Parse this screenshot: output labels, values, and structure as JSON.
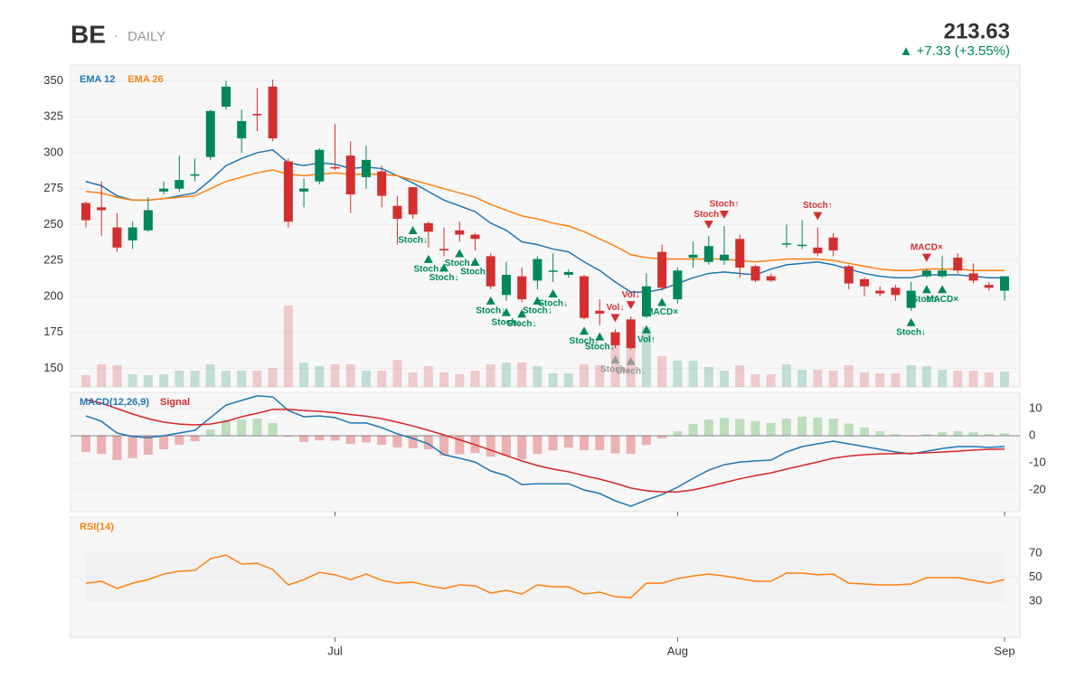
{
  "header": {
    "symbol": "BE",
    "separator": "·",
    "interval": "DAILY",
    "price": 213.63,
    "change": "▲ +7.33  (+3.55%)"
  },
  "chart_data": [
    {
      "type": "candlestick",
      "categories": [
        null,
        null,
        null,
        null,
        null,
        null,
        null,
        null,
        null,
        null,
        null,
        null,
        null,
        null,
        null,
        null,
        "Jul",
        null,
        null,
        null,
        null,
        null,
        null,
        null,
        null,
        null,
        null,
        null,
        null,
        null,
        null,
        null,
        null,
        null,
        null,
        null,
        null,
        null,
        "Aug",
        null,
        null,
        null,
        null,
        null,
        null,
        null,
        null,
        null,
        null,
        null,
        null,
        null,
        null,
        null,
        null,
        null,
        null,
        null,
        null,
        "Sep"
      ],
      "open": [
        265,
        262,
        248,
        239,
        246,
        273,
        275,
        284,
        297,
        332,
        310,
        327,
        346,
        294,
        273,
        280,
        290,
        298,
        283,
        287,
        263,
        276,
        251,
        233,
        246,
        243,
        228,
        201,
        214,
        211,
        218,
        215,
        214,
        190,
        175,
        184,
        186,
        231,
        198,
        227,
        224,
        225,
        240,
        221,
        214,
        237,
        236,
        234,
        241,
        221,
        212,
        204,
        206,
        192,
        214,
        214,
        227,
        216,
        208,
        204
      ],
      "high": [
        266,
        280,
        258,
        252,
        269,
        280,
        298,
        296,
        330,
        350,
        330,
        345,
        351,
        296,
        282,
        303,
        320,
        308,
        305,
        291,
        270,
        276,
        252,
        248,
        252,
        244,
        230,
        224,
        220,
        228,
        230,
        219,
        215,
        198,
        177,
        186,
        216,
        236,
        220,
        238,
        242,
        249,
        243,
        222,
        216,
        250,
        253,
        248,
        244,
        222,
        213,
        207,
        208,
        210,
        219,
        228,
        230,
        223,
        210,
        214
      ],
      "low": [
        248,
        242,
        231,
        233,
        245,
        271,
        273,
        280,
        295,
        330,
        300,
        315,
        308,
        248,
        262,
        278,
        288,
        258,
        275,
        262,
        236,
        254,
        234,
        228,
        238,
        232,
        205,
        197,
        196,
        205,
        210,
        213,
        184,
        180,
        164,
        163,
        185,
        204,
        195,
        220,
        222,
        222,
        213,
        210,
        210,
        234,
        233,
        228,
        228,
        205,
        200,
        200,
        197,
        190,
        213,
        213,
        216,
        209,
        204,
        197
      ],
      "close": [
        253,
        260,
        234,
        248,
        260,
        275,
        281,
        285,
        329,
        346,
        322,
        326,
        310,
        252,
        275,
        302,
        289,
        271,
        295,
        270,
        254,
        257,
        245,
        232,
        243,
        240,
        207,
        215,
        198,
        226,
        218,
        217,
        185,
        188,
        166,
        164,
        207,
        206,
        218,
        229,
        235,
        229,
        220,
        211,
        211,
        237,
        236,
        230,
        232,
        209,
        207,
        202,
        201,
        204,
        218,
        218,
        218,
        211,
        206,
        214
      ],
      "volume": [
        13,
        25,
        24,
        14,
        13,
        14,
        18,
        18,
        25,
        18,
        18,
        18,
        21,
        90,
        27,
        23,
        25,
        25,
        18,
        18,
        30,
        16,
        23,
        16,
        14,
        18,
        25,
        27,
        27,
        23,
        15,
        15,
        25,
        24,
        48,
        58,
        66,
        34,
        29,
        29,
        22,
        18,
        24,
        14,
        14,
        25,
        19,
        19,
        18,
        24,
        16,
        15,
        15,
        24,
        23,
        19,
        18,
        18,
        16,
        17
      ],
      "up_color": "#00875a",
      "down_color": "#d32f2f",
      "series": [
        {
          "name": "EMA 12",
          "color": "#1f77b4",
          "values": [
            280,
            277,
            270,
            267,
            267,
            268,
            270,
            272,
            281,
            291,
            296,
            300,
            302,
            293,
            291,
            293,
            292,
            289,
            290,
            289,
            284,
            279,
            273,
            267,
            263,
            259,
            251,
            246,
            238,
            236,
            233,
            231,
            224,
            218,
            210,
            203,
            203,
            205,
            209,
            213,
            216,
            217,
            216,
            215,
            219,
            222,
            223,
            224,
            222,
            219,
            216,
            214,
            213,
            213,
            215,
            215,
            215,
            214,
            213,
            213
          ]
        },
        {
          "name": "EMA 26",
          "color": "#ff7f0e",
          "values": [
            273,
            272,
            269,
            267,
            267,
            268,
            269,
            270,
            275,
            280,
            283,
            286,
            288,
            285,
            284,
            285,
            286,
            285,
            285,
            285,
            284,
            281,
            278,
            275,
            272,
            269,
            264,
            260,
            256,
            254,
            251,
            249,
            245,
            240,
            235,
            229,
            227,
            226,
            226,
            226,
            226,
            226,
            225,
            224,
            225,
            226,
            226,
            226,
            225,
            223,
            221,
            219,
            218,
            218,
            219,
            219,
            219,
            218,
            218,
            218
          ]
        }
      ],
      "ylim": [
        137,
        361
      ],
      "yticks": [
        150,
        175,
        200,
        225,
        250,
        275,
        300,
        325,
        350
      ],
      "grid": true,
      "annotations": [
        {
          "index": 21,
          "label": "Stoch↓",
          "side": "below",
          "color": "#00875a"
        },
        {
          "index": 22,
          "label": "Stoch↓",
          "side": "below",
          "color": "#00875a"
        },
        {
          "index": 23,
          "label": "Stoch↓",
          "side": "below",
          "color": "#00875a"
        },
        {
          "index": 24,
          "label": "Stoch↓",
          "side": "below",
          "color": "#00875a"
        },
        {
          "index": 25,
          "label": "Stoch↓",
          "side": "below",
          "color": "#00875a"
        },
        {
          "index": 26,
          "label": "Stoch↓",
          "side": "below",
          "color": "#00875a"
        },
        {
          "index": 27,
          "label": "Stoch↓",
          "side": "below",
          "color": "#00875a"
        },
        {
          "index": 28,
          "label": "Stoch↓",
          "side": "below",
          "color": "#00875a"
        },
        {
          "index": 29,
          "label": "Stoch↓",
          "side": "below",
          "color": "#00875a"
        },
        {
          "index": 30,
          "label": "Stoch↓",
          "side": "below",
          "color": "#00875a"
        },
        {
          "index": 32,
          "label": "Stoch↓",
          "side": "below",
          "color": "#00875a"
        },
        {
          "index": 33,
          "label": "Stoch↓",
          "side": "below",
          "color": "#00875a"
        },
        {
          "index": 34,
          "label": "Stoch↓",
          "side": "below",
          "color": "#999999"
        },
        {
          "index": 35,
          "label": "Stoch↓",
          "side": "below",
          "color": "#999999"
        },
        {
          "index": 36,
          "label": "Vol↑",
          "side": "below",
          "color": "#00875a"
        },
        {
          "index": 37,
          "label": "MACD×",
          "side": "below",
          "color": "#00875a"
        },
        {
          "index": 53,
          "label": "Stoch↓",
          "side": "below",
          "color": "#00875a"
        },
        {
          "index": 54,
          "label": "Stoch↓",
          "side": "below",
          "color": "#00875a"
        },
        {
          "index": 55,
          "label": "MACD×",
          "side": "below",
          "color": "#00875a"
        },
        {
          "index": 34,
          "label": "Vol↓",
          "side": "above",
          "color": "#d32f2f"
        },
        {
          "index": 35,
          "label": "Vol↓",
          "side": "above",
          "color": "#d32f2f"
        },
        {
          "index": 40,
          "label": "Stoch↑",
          "side": "above",
          "color": "#d32f2f"
        },
        {
          "index": 41,
          "label": "Stoch↑",
          "side": "above",
          "color": "#d32f2f"
        },
        {
          "index": 47,
          "label": "Stoch↑",
          "side": "above",
          "color": "#d32f2f"
        },
        {
          "index": 54,
          "label": "MACD×",
          "side": "above",
          "color": "#d32f2f"
        }
      ]
    },
    {
      "type": "macd",
      "series": [
        {
          "name": "MACD(12,26,9)",
          "color": "#1f77b4",
          "values": [
            7.3,
            5.3,
            1,
            -0.3,
            -0.7,
            0,
            1,
            2,
            6.7,
            11.3,
            13,
            14.7,
            14.3,
            9.3,
            7,
            7.3,
            6.7,
            4.7,
            4.7,
            3,
            0.7,
            -1,
            -3,
            -7,
            -8.3,
            -9.7,
            -13,
            -14.7,
            -18,
            -17.7,
            -17.7,
            -17.7,
            -20,
            -21.3,
            -24,
            -26,
            -23.7,
            -21.7,
            -19,
            -15.7,
            -12.7,
            -10.7,
            -9.7,
            -9.3,
            -9,
            -6,
            -4,
            -3,
            -2,
            -3,
            -4,
            -5,
            -6,
            -6.7,
            -5.7,
            -4.7,
            -4,
            -4,
            -4.3,
            -4
          ]
        },
        {
          "name": "Signal",
          "color": "#d62728",
          "values": [
            13.3,
            12,
            10,
            8,
            6.3,
            5,
            4.3,
            4,
            4.3,
            5.3,
            7,
            8.3,
            9.7,
            9.7,
            9.3,
            9,
            8.5,
            7.8,
            7.2,
            6.3,
            5,
            3.6,
            2,
            0.3,
            -1.5,
            -3.3,
            -5.3,
            -7.3,
            -9.3,
            -11,
            -12.3,
            -13.3,
            -14.7,
            -16,
            -17.5,
            -19.3,
            -20.3,
            -20.7,
            -20.7,
            -20,
            -18.7,
            -17.3,
            -15.9,
            -14.7,
            -13.7,
            -12.3,
            -11,
            -9.7,
            -8.3,
            -7.5,
            -7,
            -6.7,
            -6.6,
            -6.5,
            -6.3,
            -6,
            -5.7,
            -5.3,
            -5,
            -4.9
          ]
        }
      ],
      "histogram": [
        -6,
        -6.7,
        -9,
        -8.3,
        -7,
        -5,
        -3.3,
        -2,
        2.3,
        6,
        6,
        6.3,
        4.7,
        -0.4,
        -2.3,
        -1.7,
        -1.8,
        -3.1,
        -2.5,
        -3.3,
        -4.3,
        -4.6,
        -5,
        -7.3,
        -6.8,
        -6.4,
        -7.7,
        -7.4,
        -8.7,
        -6.7,
        -5.4,
        -4.4,
        -5.3,
        -5.3,
        -6.5,
        -6.7,
        -3.4,
        -1,
        1.7,
        4.3,
        6,
        6.6,
        6.2,
        5.4,
        4.7,
        6.3,
        7,
        6.7,
        6.3,
        4.5,
        3,
        1.7,
        0.6,
        -0.2,
        0.6,
        1.3,
        1.7,
        1.3,
        0.7,
        0.9
      ],
      "ylim": [
        -28,
        16
      ],
      "yticks": [
        -20,
        -10,
        0,
        10
      ],
      "grid": true
    },
    {
      "type": "rsi",
      "series": [
        {
          "name": "RSI(14)",
          "color": "#ff7f0e",
          "values": [
            45,
            46.6,
            40.6,
            45,
            48,
            52.6,
            55,
            55.6,
            65.4,
            68.4,
            61,
            61.6,
            56.4,
            43.6,
            48,
            54,
            52,
            48,
            52.6,
            47.4,
            45,
            45.9,
            42.9,
            40.6,
            43.6,
            42.9,
            36.8,
            39.1,
            36,
            43.6,
            42,
            42,
            36,
            37.6,
            33.8,
            33,
            45,
            45,
            48.9,
            51,
            52.6,
            51,
            48.9,
            46.6,
            46.6,
            53.4,
            53.4,
            52,
            52.6,
            45,
            44.4,
            43.6,
            43.6,
            44.4,
            49.6,
            49.6,
            49.6,
            47.4,
            45,
            48
          ]
        }
      ],
      "ylim": [
        0,
        100
      ],
      "yticks": [
        30,
        50,
        70
      ],
      "grid": true
    }
  ]
}
